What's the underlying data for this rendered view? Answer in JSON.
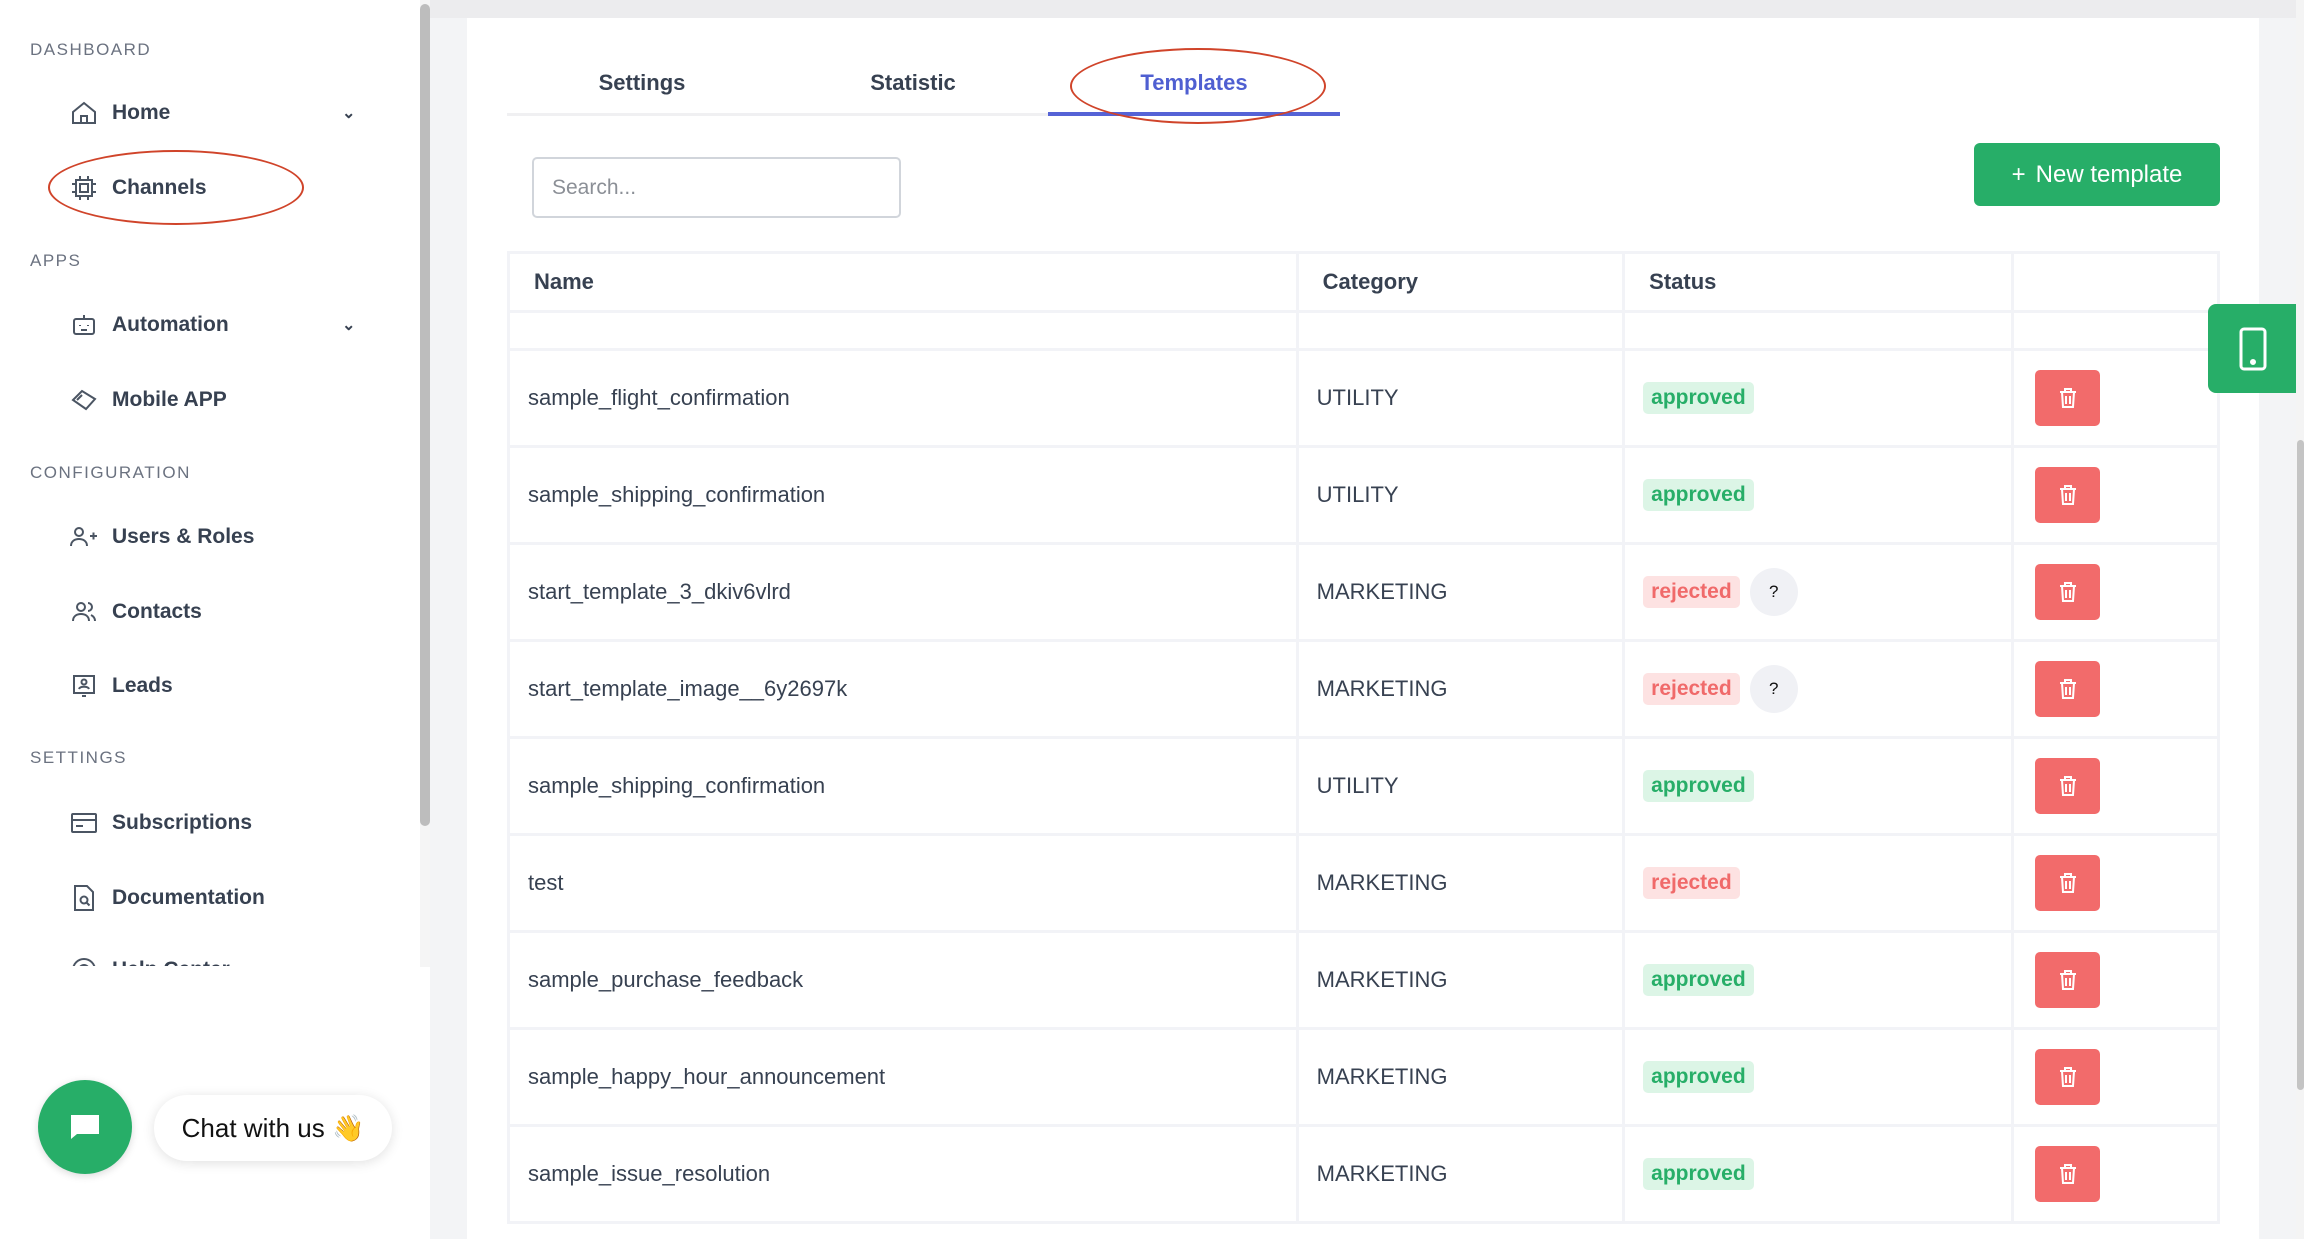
{
  "sidebar": {
    "sections": [
      {
        "label": "DASHBOARD"
      },
      {
        "label": "APPS"
      },
      {
        "label": "CONFIGURATION"
      },
      {
        "label": "SETTINGS"
      }
    ],
    "items": [
      {
        "label": "Home",
        "icon": "home-icon",
        "chevron": true
      },
      {
        "label": "Channels",
        "icon": "chip-icon",
        "highlighted": true
      },
      {
        "label": "Automation",
        "icon": "robot-icon",
        "chevron": true
      },
      {
        "label": "Mobile APP",
        "icon": "mobile-app-icon"
      },
      {
        "label": "Users & Roles",
        "icon": "user-plus-icon"
      },
      {
        "label": "Contacts",
        "icon": "users-icon"
      },
      {
        "label": "Leads",
        "icon": "lead-icon"
      },
      {
        "label": "Subscriptions",
        "icon": "credit-card-icon"
      },
      {
        "label": "Documentation",
        "icon": "document-search-icon"
      },
      {
        "label": "Help Center",
        "icon": "help-icon"
      }
    ]
  },
  "chat": {
    "label": "Chat with us",
    "emoji": "👋"
  },
  "tabs": [
    {
      "label": "Settings"
    },
    {
      "label": "Statistic"
    },
    {
      "label": "Templates",
      "active": true
    }
  ],
  "search": {
    "placeholder": "Search...",
    "value": ""
  },
  "new_template": {
    "label": "New template",
    "icon": "+"
  },
  "table": {
    "headers": [
      "Name",
      "Category",
      "Status",
      ""
    ],
    "rows": [
      {
        "name": "sample_flight_confirmation",
        "category": "UTILITY",
        "status": "approved"
      },
      {
        "name": "sample_shipping_confirmation",
        "category": "UTILITY",
        "status": "approved"
      },
      {
        "name": "start_template_3_dkiv6vlrd",
        "category": "MARKETING",
        "status": "rejected",
        "help": "?"
      },
      {
        "name": "start_template_image__6y2697k",
        "category": "MARKETING",
        "status": "rejected",
        "help": "?"
      },
      {
        "name": "sample_shipping_confirmation",
        "category": "UTILITY",
        "status": "approved"
      },
      {
        "name": "test",
        "category": "MARKETING",
        "status": "rejected"
      },
      {
        "name": "sample_purchase_feedback",
        "category": "MARKETING",
        "status": "approved"
      },
      {
        "name": "sample_happy_hour_announcement",
        "category": "MARKETING",
        "status": "approved"
      },
      {
        "name": "sample_issue_resolution",
        "category": "MARKETING",
        "status": "approved"
      }
    ]
  },
  "colors": {
    "accent": "#5563d6",
    "green": "#27ae68",
    "danger": "#f26b6b",
    "annotation": "#d0442a"
  }
}
